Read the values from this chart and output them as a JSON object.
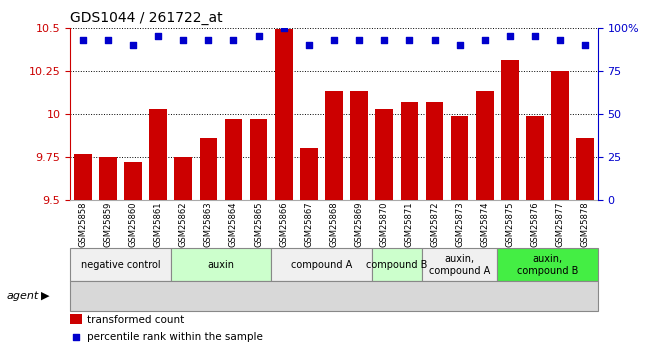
{
  "title": "GDS1044 / 261722_at",
  "samples": [
    "GSM25858",
    "GSM25859",
    "GSM25860",
    "GSM25861",
    "GSM25862",
    "GSM25863",
    "GSM25864",
    "GSM25865",
    "GSM25866",
    "GSM25867",
    "GSM25868",
    "GSM25869",
    "GSM25870",
    "GSM25871",
    "GSM25872",
    "GSM25873",
    "GSM25874",
    "GSM25875",
    "GSM25876",
    "GSM25877",
    "GSM25878"
  ],
  "bar_values": [
    9.77,
    9.75,
    9.72,
    10.03,
    9.75,
    9.86,
    9.97,
    9.97,
    10.49,
    9.8,
    10.13,
    10.13,
    10.03,
    10.07,
    10.07,
    9.99,
    10.13,
    10.31,
    9.99,
    10.25,
    9.86
  ],
  "percentile_values": [
    93,
    93,
    90,
    95,
    93,
    93,
    93,
    95,
    100,
    90,
    93,
    93,
    93,
    93,
    93,
    90,
    93,
    95,
    95,
    93,
    90
  ],
  "bar_color": "#cc0000",
  "percentile_color": "#0000cc",
  "ylim": [
    9.5,
    10.5
  ],
  "yticks": [
    9.5,
    9.75,
    10.0,
    10.25,
    10.5
  ],
  "right_ylim": [
    0,
    100
  ],
  "right_yticks": [
    0,
    25,
    50,
    75,
    100
  ],
  "right_yticklabels": [
    "0",
    "25",
    "50",
    "75",
    "100%"
  ],
  "groups": [
    {
      "label": "negative control",
      "start": 0,
      "end": 4,
      "color": "#f0f0f0"
    },
    {
      "label": "auxin",
      "start": 4,
      "end": 8,
      "color": "#ccffcc"
    },
    {
      "label": "compound A",
      "start": 8,
      "end": 12,
      "color": "#f0f0f0"
    },
    {
      "label": "compound B",
      "start": 12,
      "end": 14,
      "color": "#ccffcc"
    },
    {
      "label": "auxin,\ncompound A",
      "start": 14,
      "end": 17,
      "color": "#f0f0f0"
    },
    {
      "label": "auxin,\ncompound B",
      "start": 17,
      "end": 21,
      "color": "#44ee44"
    }
  ],
  "legend_bar_label": "transformed count",
  "legend_dot_label": "percentile rank within the sample",
  "agent_label": "agent"
}
